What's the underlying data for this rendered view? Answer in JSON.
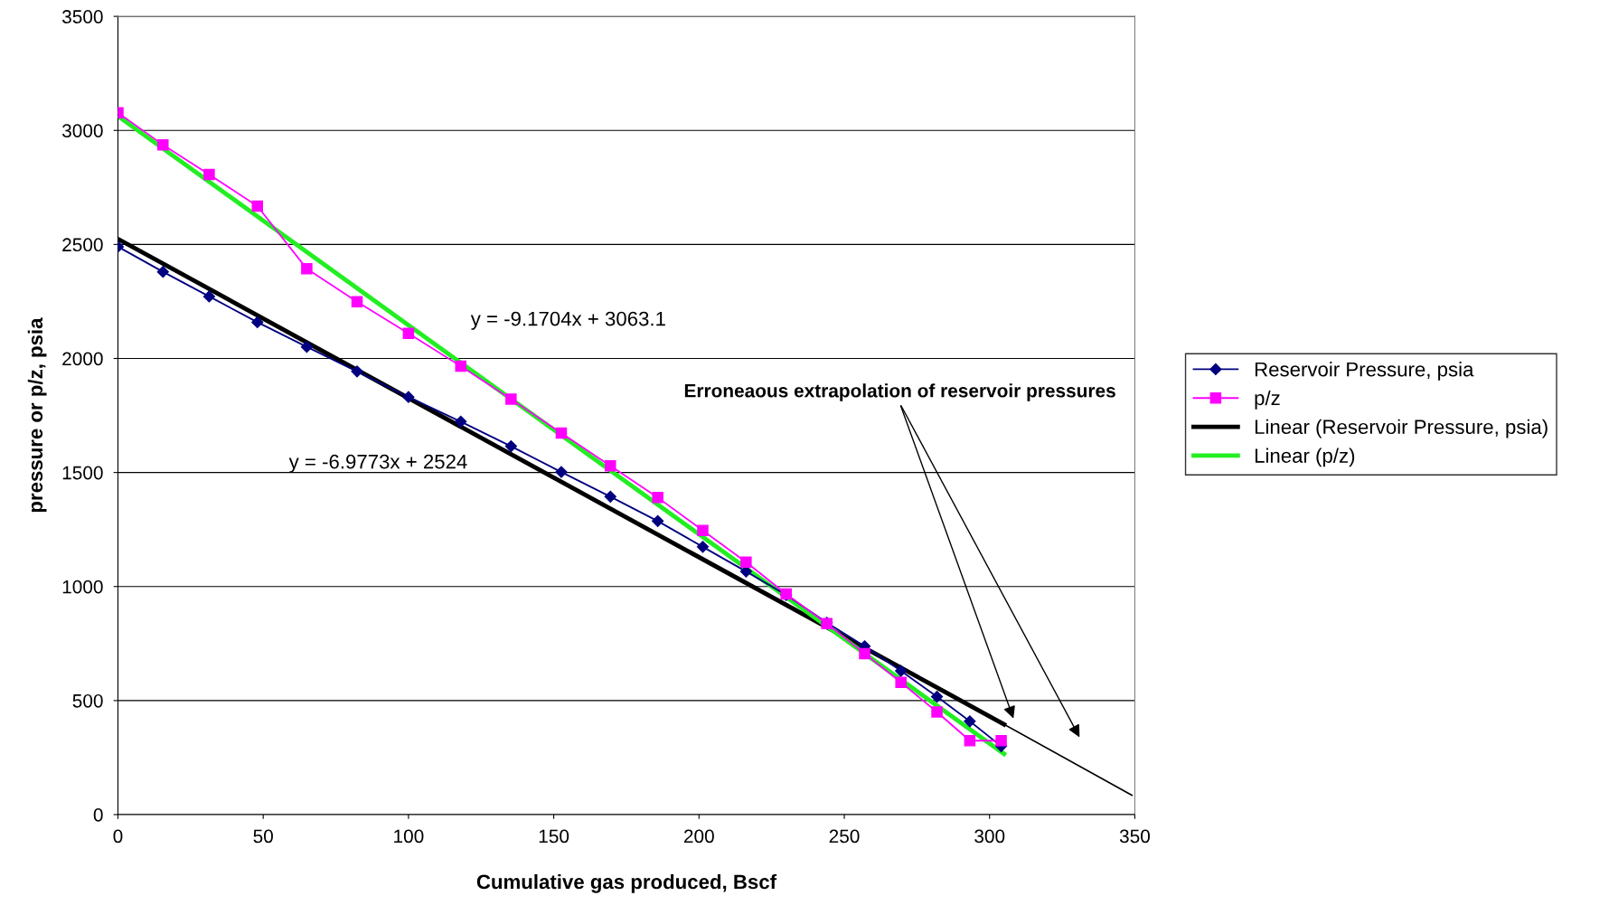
{
  "chart_data": {
    "type": "line",
    "xlabel": "Cumulative gas produced, Bscf",
    "ylabel": "pressure or p/z, psia",
    "xlim": [
      0,
      350
    ],
    "xticks": [
      0,
      50,
      100,
      150,
      200,
      250,
      300,
      350
    ],
    "ylim": [
      0,
      3500
    ],
    "yticks": [
      0,
      500,
      1000,
      1500,
      2000,
      2500,
      3000,
      3500
    ],
    "grid": "y",
    "legend": "right",
    "series": [
      {
        "name": "Reservoir Pressure, psia",
        "color": "#000080",
        "marker": "diamond",
        "x": [
          0,
          15.5,
          31.4,
          48,
          65,
          82.3,
          100,
          118,
          135.3,
          152.6,
          169.5,
          185.8,
          201.3,
          216.2,
          230,
          244,
          257,
          269.5,
          281.9,
          293.2,
          304
        ],
        "values": [
          2490,
          2380,
          2272,
          2159,
          2051,
          1943,
          1831,
          1723,
          1615,
          1502,
          1394,
          1287,
          1174,
          1066,
          963,
          841,
          738,
          630,
          517,
          409,
          300
        ]
      },
      {
        "name": "p/z",
        "color": "#ff00ff",
        "marker": "square",
        "x": [
          0,
          15.5,
          31.4,
          48,
          65,
          82.3,
          100,
          118,
          135.3,
          152.6,
          169.5,
          185.8,
          201.3,
          216.2,
          230,
          244,
          257,
          269.5,
          281.9,
          293.2,
          304
        ],
        "values": [
          3077,
          2937,
          2807,
          2668,
          2393,
          2249,
          2110,
          1966,
          1822,
          1673,
          1529,
          1390,
          1246,
          1107,
          967,
          837,
          706,
          580,
          450,
          324,
          324
        ]
      },
      {
        "name": "Linear (Reservoir Pressure, psia)",
        "color": "#000000",
        "marker": "none",
        "x": [
          0,
          305
        ],
        "values": [
          2524,
          396
        ]
      },
      {
        "name": "Linear (p/z)",
        "color": "#22ee22",
        "marker": "none",
        "x": [
          0,
          305
        ],
        "values": [
          3063,
          266
        ]
      },
      {
        "color": "#000000",
        "marker": "none",
        "x": [
          305,
          349
        ],
        "values": [
          396,
          85
        ]
      }
    ],
    "annotations": [
      "y = -9.1704x + 3063.1",
      "y = -6.9773x + 2524",
      "Erroneaous extrapolation of reservoir pressures"
    ]
  }
}
